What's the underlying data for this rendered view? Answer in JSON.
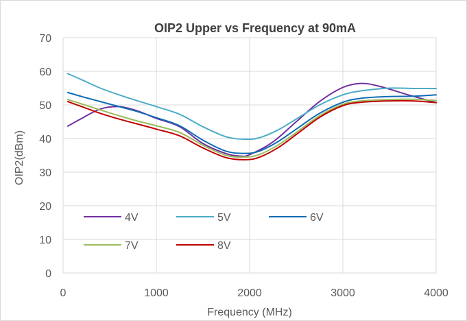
{
  "chart_data": {
    "type": "line",
    "title": "OIP2 Upper vs Frequency at 90mA",
    "xlabel": "Frequency (MHz)",
    "ylabel": "OIP2(dBm)",
    "xlim": [
      0,
      4000
    ],
    "ylim": [
      0,
      70
    ],
    "x_ticks": [
      0,
      1000,
      2000,
      3000,
      4000
    ],
    "y_ticks": [
      0,
      10,
      20,
      30,
      40,
      50,
      60,
      70
    ],
    "grid": true,
    "legend_position": "lower-left inside plot",
    "series": [
      {
        "name": "4V",
        "color": "#7030a0",
        "points": [
          [
            50,
            43.7
          ],
          [
            200,
            46
          ],
          [
            400,
            48.8
          ],
          [
            600,
            49.5
          ],
          [
            800,
            48.2
          ],
          [
            1000,
            46
          ],
          [
            1250,
            43.5
          ],
          [
            1500,
            38.5
          ],
          [
            1750,
            35.5
          ],
          [
            1900,
            34.8
          ],
          [
            2000,
            35.2
          ],
          [
            2250,
            39
          ],
          [
            2500,
            45
          ],
          [
            2750,
            51
          ],
          [
            3000,
            55.2
          ],
          [
            3200,
            56.4
          ],
          [
            3400,
            55.5
          ],
          [
            3700,
            53
          ],
          [
            4000,
            50.7
          ]
        ]
      },
      {
        "name": "5V",
        "color": "#4bacc6",
        "points": [
          [
            50,
            59.3
          ],
          [
            200,
            57.5
          ],
          [
            400,
            55
          ],
          [
            600,
            53
          ],
          [
            800,
            51.2
          ],
          [
            1000,
            49.5
          ],
          [
            1250,
            47.2
          ],
          [
            1500,
            43.5
          ],
          [
            1750,
            40.5
          ],
          [
            1950,
            39.8
          ],
          [
            2100,
            40.2
          ],
          [
            2300,
            42.5
          ],
          [
            2500,
            45.8
          ],
          [
            2750,
            50
          ],
          [
            3000,
            53
          ],
          [
            3200,
            54.2
          ],
          [
            3500,
            55
          ],
          [
            3750,
            54.9
          ],
          [
            4000,
            54.9
          ]
        ]
      },
      {
        "name": "6V",
        "color": "#0f6bb3",
        "points": [
          [
            50,
            53.7
          ],
          [
            200,
            52.5
          ],
          [
            400,
            51
          ],
          [
            600,
            49.5
          ],
          [
            800,
            48
          ],
          [
            1000,
            46.2
          ],
          [
            1250,
            43.8
          ],
          [
            1500,
            39.5
          ],
          [
            1750,
            36.2
          ],
          [
            1950,
            35.6
          ],
          [
            2100,
            36.2
          ],
          [
            2300,
            39
          ],
          [
            2500,
            42.8
          ],
          [
            2750,
            47.5
          ],
          [
            3000,
            50.8
          ],
          [
            3200,
            52
          ],
          [
            3500,
            52.5
          ],
          [
            3750,
            52.6
          ],
          [
            4000,
            53
          ]
        ]
      },
      {
        "name": "7V",
        "color": "#9bbb59",
        "points": [
          [
            50,
            51.6
          ],
          [
            200,
            50.3
          ],
          [
            400,
            48.5
          ],
          [
            600,
            46.8
          ],
          [
            800,
            45.2
          ],
          [
            1000,
            43.8
          ],
          [
            1250,
            41.8
          ],
          [
            1500,
            38
          ],
          [
            1750,
            35
          ],
          [
            1950,
            34.5
          ],
          [
            2100,
            35.2
          ],
          [
            2300,
            38
          ],
          [
            2500,
            41.8
          ],
          [
            2750,
            46.8
          ],
          [
            3000,
            50.2
          ],
          [
            3200,
            51.2
          ],
          [
            3500,
            51.6
          ],
          [
            3750,
            51.7
          ],
          [
            4000,
            51.3
          ]
        ]
      },
      {
        "name": "8V",
        "color": "#c00000",
        "points": [
          [
            50,
            51
          ],
          [
            200,
            49.5
          ],
          [
            400,
            47.5
          ],
          [
            600,
            45.8
          ],
          [
            800,
            44.3
          ],
          [
            1000,
            42.8
          ],
          [
            1250,
            40.8
          ],
          [
            1500,
            37.2
          ],
          [
            1750,
            34.3
          ],
          [
            1950,
            33.7
          ],
          [
            2100,
            34.4
          ],
          [
            2300,
            37.2
          ],
          [
            2500,
            41.2
          ],
          [
            2750,
            46.3
          ],
          [
            3000,
            49.8
          ],
          [
            3200,
            50.8
          ],
          [
            3500,
            51.2
          ],
          [
            3750,
            51.2
          ],
          [
            4000,
            50.7
          ]
        ]
      }
    ]
  }
}
